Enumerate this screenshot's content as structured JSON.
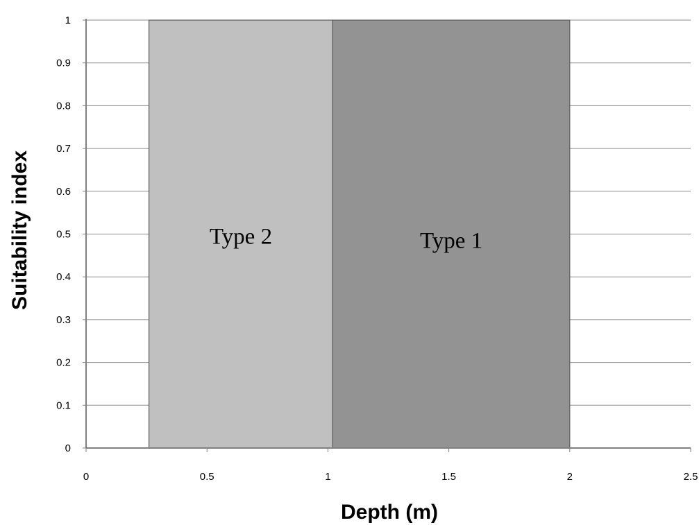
{
  "chart_data": {
    "type": "area",
    "xlabel": "Depth (m)",
    "ylabel": "Suitability index",
    "xlim": [
      0,
      2.5
    ],
    "ylim": [
      0,
      1
    ],
    "x_ticks": [
      "0",
      "0.5",
      "1",
      "1.5",
      "2",
      "2.5"
    ],
    "y_ticks": [
      "0",
      "0.1",
      "0.2",
      "0.3",
      "0.4",
      "0.5",
      "0.6",
      "0.7",
      "0.8",
      "0.9",
      "1"
    ],
    "grid": "horizontal",
    "regions": [
      {
        "label": "Type 2",
        "x_start": 0.26,
        "x_end": 1.02,
        "value": 1,
        "color": "#c0c0c0"
      },
      {
        "label": "Type 1",
        "x_start": 1.02,
        "x_end": 2.0,
        "value": 1,
        "color": "#939393"
      }
    ]
  }
}
